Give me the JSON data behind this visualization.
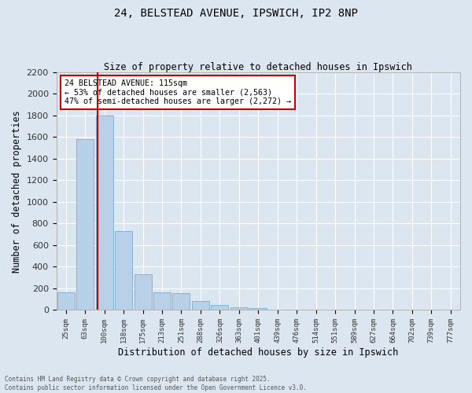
{
  "title_line1": "24, BELSTEAD AVENUE, IPSWICH, IP2 8NP",
  "title_line2": "Size of property relative to detached houses in Ipswich",
  "xlabel": "Distribution of detached houses by size in Ipswich",
  "ylabel": "Number of detached properties",
  "bar_labels": [
    "25sqm",
    "63sqm",
    "100sqm",
    "138sqm",
    "175sqm",
    "213sqm",
    "251sqm",
    "288sqm",
    "326sqm",
    "363sqm",
    "401sqm",
    "439sqm",
    "476sqm",
    "514sqm",
    "551sqm",
    "589sqm",
    "627sqm",
    "664sqm",
    "702sqm",
    "739sqm",
    "777sqm"
  ],
  "bar_values": [
    165,
    1580,
    1800,
    730,
    330,
    160,
    155,
    80,
    45,
    25,
    18,
    0,
    0,
    0,
    0,
    0,
    0,
    0,
    0,
    0,
    0
  ],
  "bar_color": "#b8d0e8",
  "bar_edge_color": "#7aaecc",
  "vline_color": "#cc0000",
  "vline_x_index": 2,
  "annotation_line1": "24 BELSTEAD AVENUE: 115sqm",
  "annotation_line2": "← 53% of detached houses are smaller (2,563)",
  "annotation_line3": "47% of semi-detached houses are larger (2,272) →",
  "annotation_box_facecolor": "#ffffff",
  "annotation_box_edgecolor": "#cc0000",
  "ylim": [
    0,
    2200
  ],
  "yticks": [
    0,
    200,
    400,
    600,
    800,
    1000,
    1200,
    1400,
    1600,
    1800,
    2000,
    2200
  ],
  "background_color": "#dce6f0",
  "grid_color": "#ffffff",
  "footnote_line1": "Contains HM Land Registry data © Crown copyright and database right 2025.",
  "footnote_line2": "Contains public sector information licensed under the Open Government Licence v3.0."
}
